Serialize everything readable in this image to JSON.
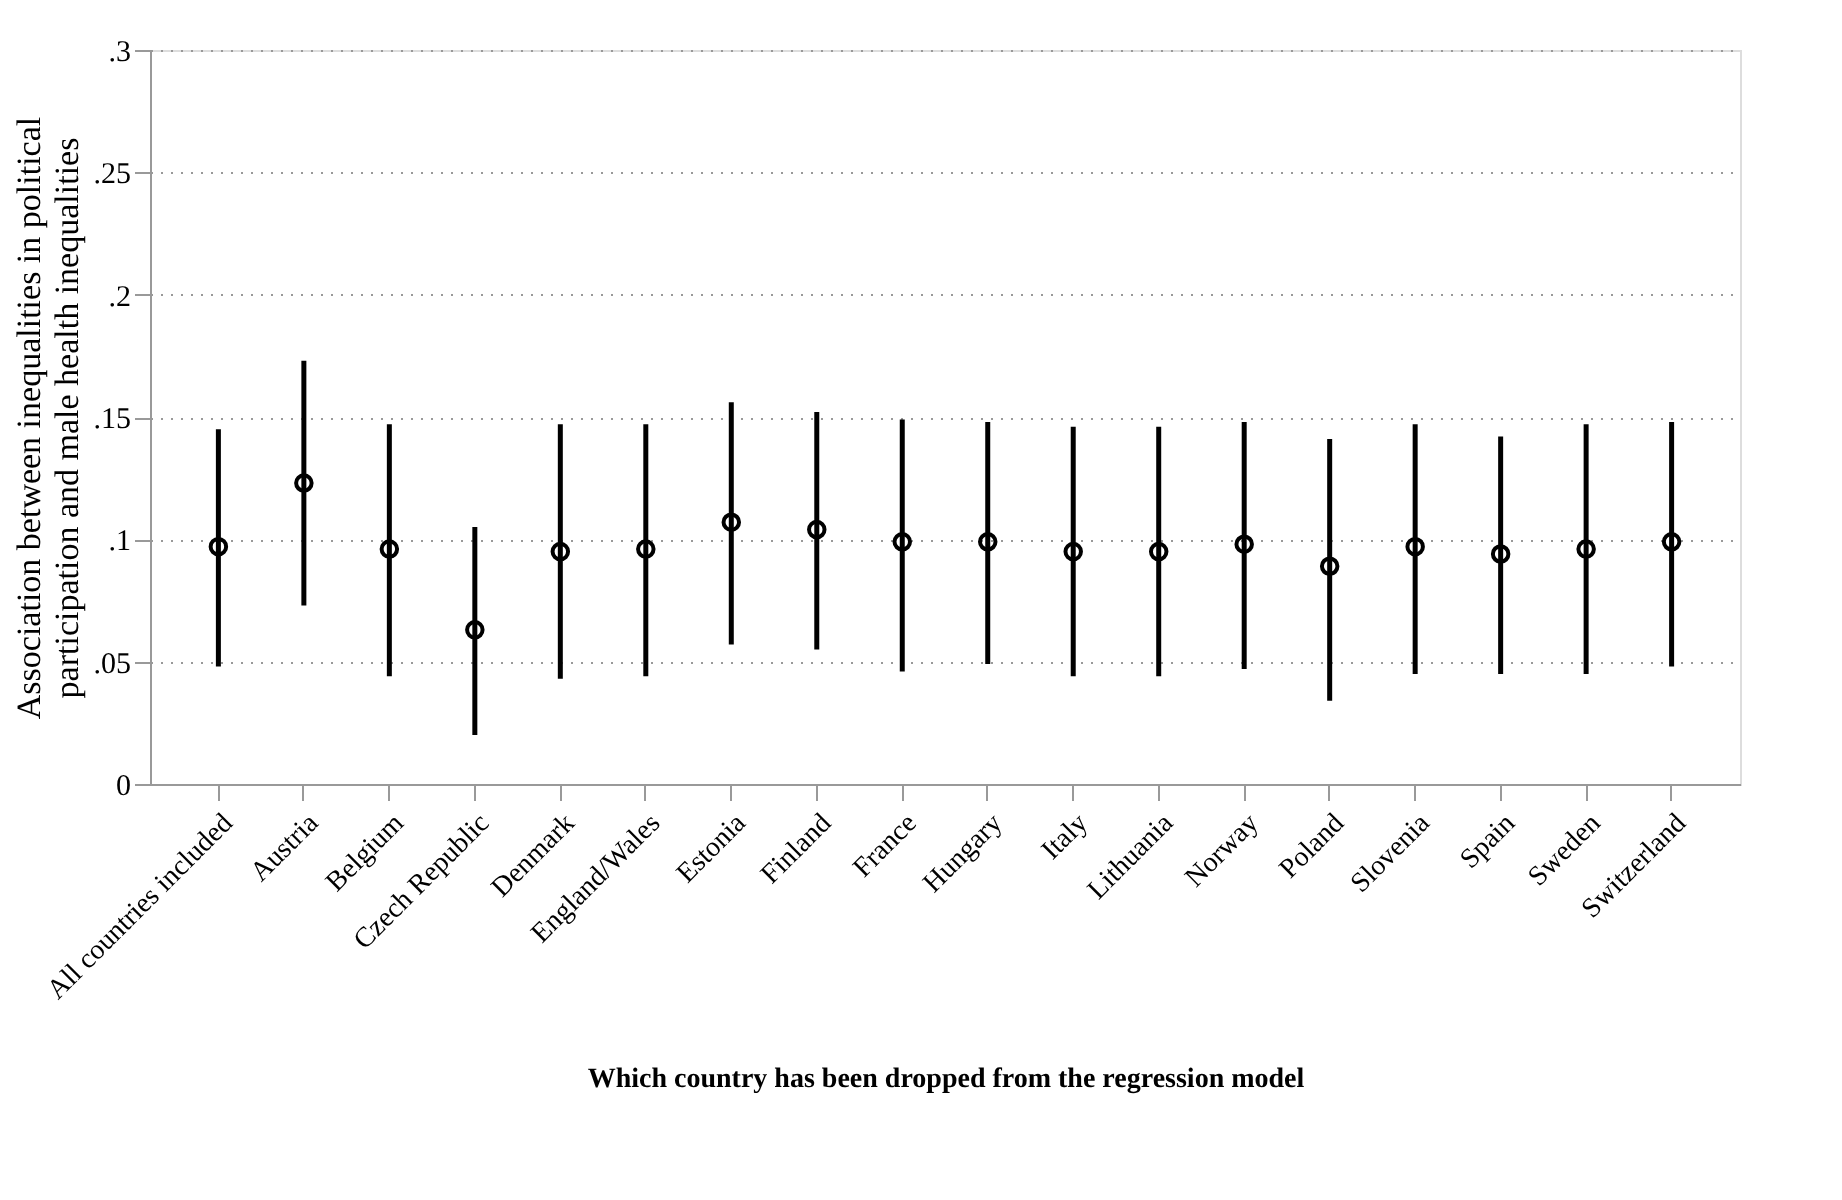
{
  "chart_data": {
    "type": "scatter",
    "xlabel": "Which country has been dropped from the regression model",
    "ylabel": "Association between inequalities in political participation and male health inequalities",
    "categories": [
      "All countries included",
      "Austria",
      "Belgium",
      "Czech Republic",
      "Denmark",
      "England/Wales",
      "Estonia",
      "Finland",
      "France",
      "Hungary",
      "Italy",
      "Lithuania",
      "Norway",
      "Poland",
      "Slovenia",
      "Spain",
      "Sweden",
      "Switzerland"
    ],
    "series": [
      {
        "color": "#000000",
        "values": [
          0.097,
          0.123,
          0.096,
          0.063,
          0.095,
          0.096,
          0.107,
          0.104,
          0.099,
          0.099,
          0.095,
          0.095,
          0.098,
          0.089,
          0.097,
          0.094,
          0.096,
          0.099
        ],
        "errors": [
          [
            0.048,
            0.145
          ],
          [
            0.073,
            0.173
          ],
          [
            0.044,
            0.147
          ],
          [
            0.02,
            0.105
          ],
          [
            0.043,
            0.147
          ],
          [
            0.044,
            0.147
          ],
          [
            0.057,
            0.156
          ],
          [
            0.055,
            0.152
          ],
          [
            0.046,
            0.149
          ],
          [
            0.049,
            0.148
          ],
          [
            0.044,
            0.146
          ],
          [
            0.044,
            0.146
          ],
          [
            0.047,
            0.148
          ],
          [
            0.034,
            0.141
          ],
          [
            0.045,
            0.147
          ],
          [
            0.045,
            0.142
          ],
          [
            0.045,
            0.147
          ],
          [
            0.048,
            0.148
          ]
        ]
      }
    ],
    "ylim": [
      0,
      0.3
    ],
    "yticks": [
      0,
      {
        "value": 0.05,
        "label": ".05"
      },
      {
        "value": 0.1,
        "label": ".1"
      },
      {
        "value": 0.15,
        "label": ".15"
      },
      {
        "value": 0.2,
        "label": ".2"
      },
      {
        "value": 0.25,
        "label": ".25"
      },
      {
        "value": 0.3,
        "label": ".3"
      }
    ],
    "grid": "y",
    "marker": "circle"
  }
}
